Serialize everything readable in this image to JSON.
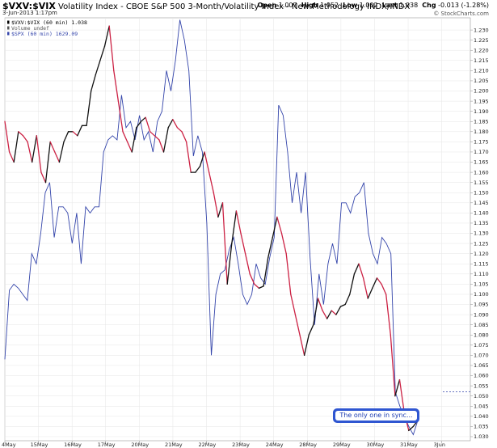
{
  "header": {
    "symbol": "$VXV:$VIX",
    "title": "Volatility Index - CBOE S&P 500 3-Month/Volatility Index - New Methodology",
    "exchange": "INDX/INDX",
    "date": "3-Jun-2013 1:17pm",
    "open_label": "Open",
    "open": "1.007",
    "high_label": "High",
    "high": "1.052",
    "low_label": "Low",
    "low": "1.002",
    "last_label": "Last",
    "last": "1.038",
    "chg_label": "Chg",
    "chg": "-0.013 (-1.28%)",
    "copyright": "© StockCharts.com"
  },
  "legend": [
    {
      "text": "$VXV:$VIX (60 min) 1.038",
      "color": "#000000"
    },
    {
      "text": "Volume undef",
      "color": "#555555"
    },
    {
      "text": "$SPX (60 min) 1629.09",
      "color": "#3344aa"
    }
  ],
  "annotation": {
    "text": "The only one in sync..."
  },
  "chart_data": {
    "type": "line",
    "x_labels": [
      "4May",
      "15May",
      "16May",
      "17May",
      "20May",
      "21May",
      "22May",
      "23May",
      "24May",
      "28May",
      "29May",
      "30May",
      "31May",
      "3Jun"
    ],
    "y_ticks": [
      "1.030",
      "1.035",
      "1.040",
      "1.045",
      "1.050",
      "1.055",
      "1.060",
      "1.065",
      "1.070",
      "1.075",
      "1.080",
      "1.085",
      "1.090",
      "1.095",
      "1.100",
      "1.105",
      "1.110",
      "1.115",
      "1.120",
      "1.125",
      "1.130",
      "1.135",
      "1.140",
      "1.145",
      "1.150",
      "1.155",
      "1.160",
      "1.165",
      "1.170",
      "1.175",
      "1.180",
      "1.185",
      "1.190",
      "1.195",
      "1.200",
      "1.205",
      "1.210",
      "1.215",
      "1.220",
      "1.225",
      "1.230"
    ],
    "ylim": [
      1.028,
      1.236
    ],
    "grid": true,
    "legend_position": "top-left",
    "series": [
      {
        "name": "$VXV:$VIX (60 min)",
        "line_colors": {
          "up": "#111111",
          "down": "#cc2244"
        },
        "values": [
          1.185,
          1.17,
          1.165,
          1.18,
          1.178,
          1.175,
          1.165,
          1.178,
          1.16,
          1.155,
          1.175,
          1.17,
          1.165,
          1.175,
          1.18,
          1.18,
          1.178,
          1.183,
          1.183,
          1.2,
          1.208,
          1.215,
          1.222,
          1.232,
          1.21,
          1.195,
          1.18,
          1.175,
          1.17,
          1.182,
          1.185,
          1.187,
          1.18,
          1.178,
          1.176,
          1.17,
          1.182,
          1.186,
          1.182,
          1.18,
          1.175,
          1.16,
          1.16,
          1.163,
          1.17,
          1.16,
          1.15,
          1.138,
          1.145,
          1.105,
          1.125,
          1.141,
          1.13,
          1.12,
          1.11,
          1.105,
          1.103,
          1.104,
          1.118,
          1.128,
          1.138,
          1.13,
          1.12,
          1.1,
          1.09,
          1.08,
          1.07,
          1.08,
          1.085,
          1.098,
          1.092,
          1.088,
          1.092,
          1.09,
          1.094,
          1.095,
          1.1,
          1.11,
          1.115,
          1.108,
          1.098,
          1.103,
          1.108,
          1.105,
          1.1,
          1.08,
          1.05,
          1.058,
          1.042,
          1.033,
          1.035,
          1.038
        ]
      },
      {
        "name": "$SPX (60 min)",
        "line_colors": {
          "main": "#3344aa"
        },
        "values": [
          1.068,
          1.102,
          1.105,
          1.103,
          1.1,
          1.097,
          1.12,
          1.115,
          1.13,
          1.15,
          1.155,
          1.128,
          1.143,
          1.143,
          1.14,
          1.125,
          1.14,
          1.115,
          1.143,
          1.14,
          1.143,
          1.143,
          1.17,
          1.176,
          1.178,
          1.176,
          1.198,
          1.182,
          1.185,
          1.176,
          1.188,
          1.176,
          1.18,
          1.17,
          1.185,
          1.19,
          1.21,
          1.2,
          1.215,
          1.235,
          1.225,
          1.21,
          1.168,
          1.178,
          1.17,
          1.135,
          1.07,
          1.1,
          1.11,
          1.112,
          1.122,
          1.128,
          1.115,
          1.1,
          1.095,
          1.1,
          1.115,
          1.108,
          1.105,
          1.118,
          1.128,
          1.193,
          1.188,
          1.17,
          1.145,
          1.16,
          1.14,
          1.16,
          1.118,
          1.085,
          1.11,
          1.095,
          1.115,
          1.125,
          1.115,
          1.145,
          1.145,
          1.14,
          1.148,
          1.15,
          1.155,
          1.13,
          1.12,
          1.115,
          1.128,
          1.125,
          1.12,
          1.052,
          1.045,
          1.04,
          1.035,
          1.031,
          1.038
        ]
      }
    ],
    "reference_line": {
      "value": 1.052,
      "color": "#3344aa",
      "style": "dashed"
    }
  }
}
